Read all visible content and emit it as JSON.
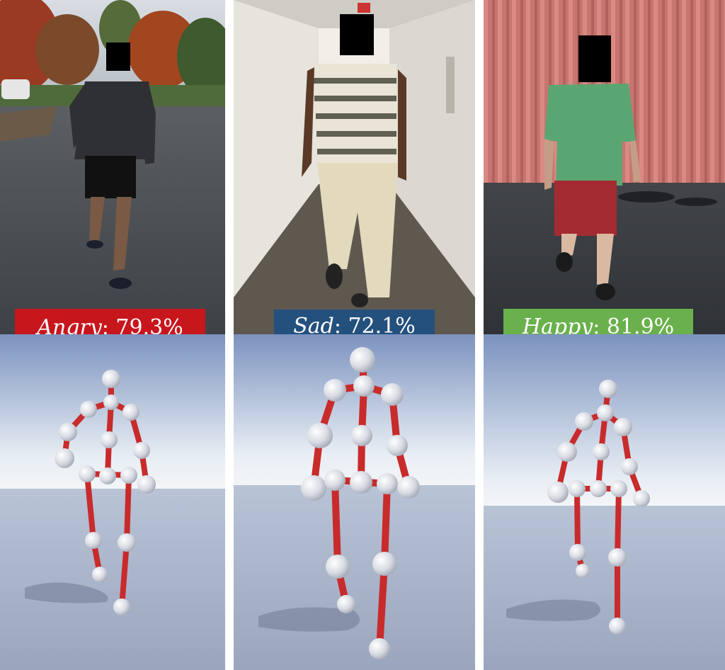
{
  "panels": [
    {
      "emotion": "Angry",
      "score": ": 79.3%",
      "label_color": "#c8161d"
    },
    {
      "emotion": "Sad",
      "score": ": 72.1%",
      "label_color": "#24507d"
    },
    {
      "emotion": "Happy",
      "score": ": 81.9%",
      "label_color": "#6ab04c"
    }
  ],
  "skeleton_colors": {
    "bone": "#c82b2b",
    "joint": "#e6e8ee"
  }
}
